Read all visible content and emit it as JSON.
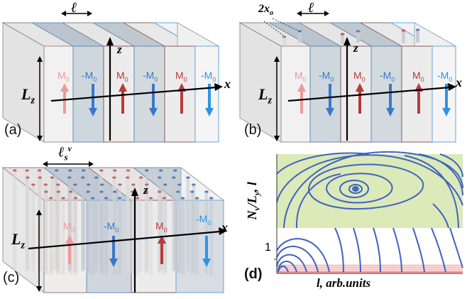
{
  "panels": {
    "a": {
      "label": "(a)",
      "domain_width": "ℓ",
      "height": "Lz",
      "axis_x": "x",
      "axis_z": "z",
      "magnetizations": [
        "M0",
        "-M0",
        "M0",
        "-M0",
        "M0",
        "-M0"
      ]
    },
    "b": {
      "label": "(b)",
      "separation": "2xo",
      "domain_width": "ℓ",
      "height": "Lz",
      "axis_x": "x",
      "axis_z": "z",
      "magnetizations": [
        "M0",
        "-M0",
        "M0",
        "-M0",
        "M0",
        "-M0"
      ]
    },
    "c": {
      "label": "(c)",
      "domain_width": "ℓs^v",
      "height": "Lz",
      "axis_x": "x",
      "axis_z": "z",
      "magnetizations": [
        "M0",
        "-M0",
        "M0",
        "-M0"
      ]
    },
    "d": {
      "label": "(d)",
      "ylabel": "Nv/Ly, l",
      "xlabel": "l, arb.units",
      "ytick": "1"
    }
  },
  "colors": {
    "pos_light": "#ee9a9a",
    "pos": "#b83a3a",
    "neg": "#3a78c8",
    "neg_bright": "#2a95e6",
    "green": "#dce9b8",
    "pink": "#f7b4b4",
    "curve": "#3e63c0"
  }
}
